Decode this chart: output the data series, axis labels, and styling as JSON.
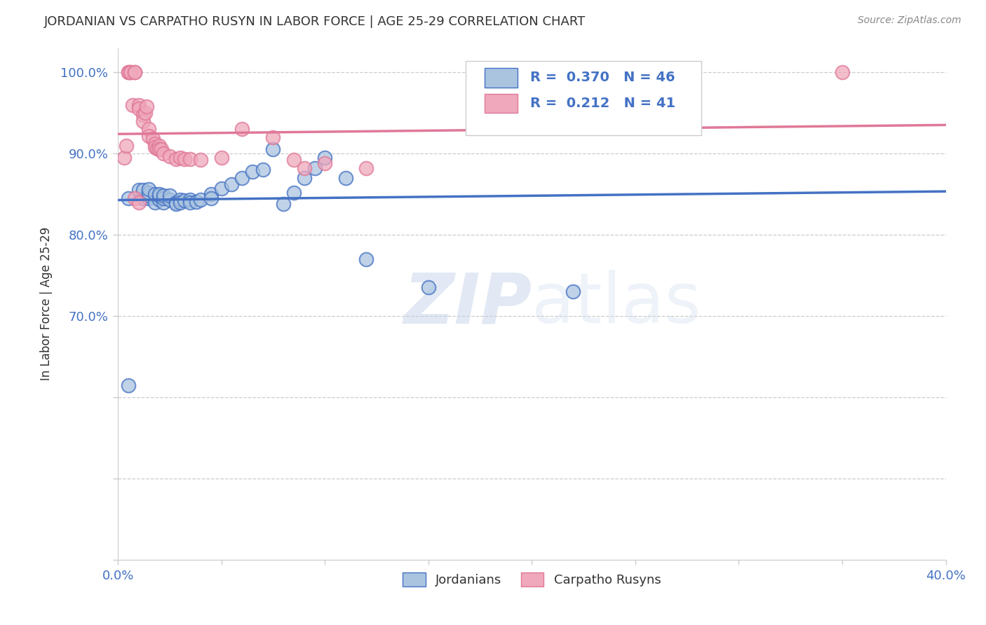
{
  "title": "JORDANIAN VS CARPATHO RUSYN IN LABOR FORCE | AGE 25-29 CORRELATION CHART",
  "source": "Source: ZipAtlas.com",
  "ylabel": "In Labor Force | Age 25-29",
  "xlim": [
    0.0,
    0.4
  ],
  "ylim": [
    0.4,
    1.03
  ],
  "xticks": [
    0.0,
    0.05,
    0.1,
    0.15,
    0.2,
    0.25,
    0.3,
    0.35,
    0.4
  ],
  "xticklabels": [
    "0.0%",
    "",
    "",
    "",
    "",
    "",
    "",
    "",
    "40.0%"
  ],
  "yticks": [
    0.4,
    0.5,
    0.6,
    0.7,
    0.8,
    0.9,
    1.0
  ],
  "yticklabels": [
    "",
    "",
    "",
    "70.0%",
    "80.0%",
    "90.0%",
    "100.0%"
  ],
  "grid_color": "#cccccc",
  "background_color": "#ffffff",
  "jordanians_color": "#aac4e0",
  "carpatho_color": "#f0a8bc",
  "jordanians_edge_color": "#4472c4",
  "carpatho_edge_color": "#e07898",
  "jordanians_line_color": "#4472c4",
  "carpatho_line_color": "#e07898",
  "legend_R_jordanians": "0.370",
  "legend_N_jordanians": "46",
  "legend_R_carpatho": "0.212",
  "legend_N_carpatho": "41",
  "watermark_zip": "ZIP",
  "watermark_atlas": "atlas",
  "jordanians_x": [
    0.005,
    0.005,
    0.01,
    0.012,
    0.012,
    0.015,
    0.015,
    0.015,
    0.015,
    0.018,
    0.018,
    0.02,
    0.02,
    0.02,
    0.022,
    0.022,
    0.022,
    0.025,
    0.025,
    0.028,
    0.028,
    0.03,
    0.03,
    0.032,
    0.035,
    0.035,
    0.038,
    0.04,
    0.045,
    0.045,
    0.05,
    0.055,
    0.06,
    0.065,
    0.07,
    0.075,
    0.08,
    0.085,
    0.09,
    0.095,
    0.1,
    0.11,
    0.12,
    0.15,
    0.175,
    0.22
  ],
  "jordanians_y": [
    0.845,
    0.615,
    0.855,
    0.845,
    0.855,
    0.845,
    0.848,
    0.852,
    0.856,
    0.84,
    0.85,
    0.843,
    0.848,
    0.85,
    0.84,
    0.845,
    0.848,
    0.843,
    0.848,
    0.84,
    0.838,
    0.843,
    0.84,
    0.842,
    0.843,
    0.84,
    0.841,
    0.843,
    0.85,
    0.845,
    0.857,
    0.862,
    0.87,
    0.878,
    0.88,
    0.905,
    0.838,
    0.852,
    0.87,
    0.882,
    0.895,
    0.87,
    0.77,
    0.735,
    1.0,
    0.73
  ],
  "carpatho_x": [
    0.003,
    0.004,
    0.005,
    0.005,
    0.006,
    0.006,
    0.007,
    0.008,
    0.008,
    0.01,
    0.01,
    0.012,
    0.012,
    0.013,
    0.014,
    0.015,
    0.015,
    0.017,
    0.018,
    0.018,
    0.019,
    0.02,
    0.02,
    0.021,
    0.022,
    0.025,
    0.028,
    0.03,
    0.032,
    0.035,
    0.04,
    0.05,
    0.06,
    0.075,
    0.085,
    0.09,
    0.1,
    0.12,
    0.008,
    0.01,
    0.35
  ],
  "carpatho_y": [
    0.895,
    0.91,
    1.0,
    1.0,
    1.0,
    1.0,
    0.96,
    1.0,
    1.0,
    0.96,
    0.955,
    0.948,
    0.94,
    0.95,
    0.958,
    0.93,
    0.922,
    0.918,
    0.912,
    0.908,
    0.906,
    0.91,
    0.905,
    0.905,
    0.9,
    0.897,
    0.893,
    0.895,
    0.893,
    0.893,
    0.892,
    0.895,
    0.93,
    0.92,
    0.892,
    0.882,
    0.888,
    0.882,
    0.845,
    0.84,
    1.0
  ]
}
